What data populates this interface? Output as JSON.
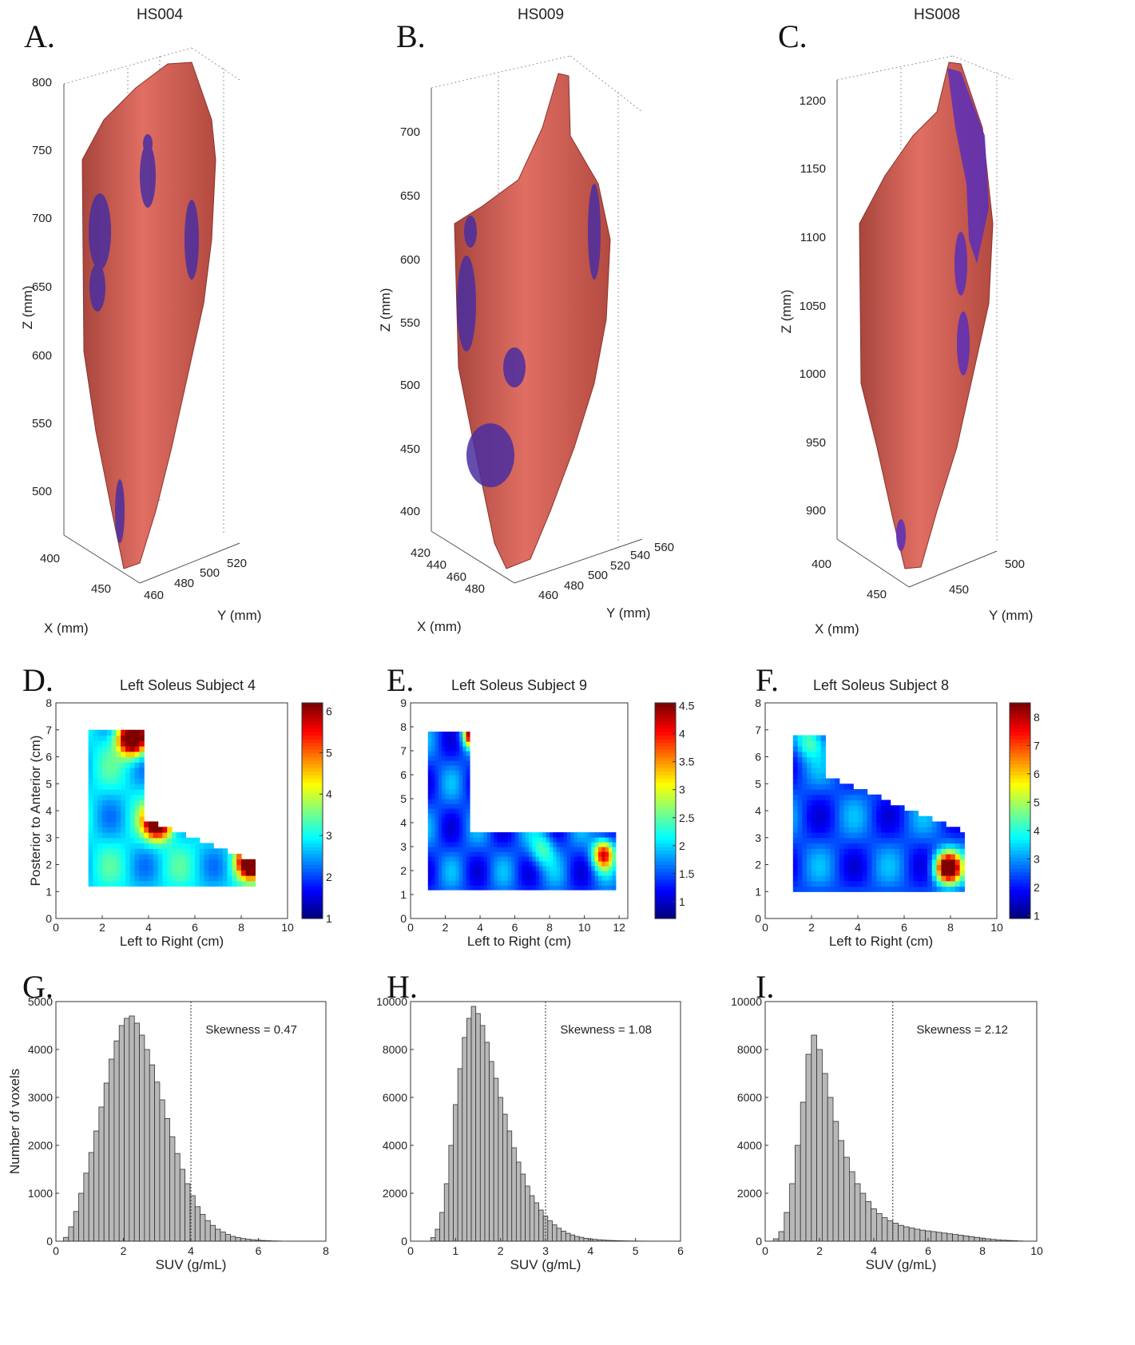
{
  "panels3d": [
    {
      "letter": "A.",
      "title": "HS004",
      "zlabel": "Z (mm)",
      "xlabel": "X (mm)",
      "ylabel": "Y (mm)",
      "zticks": [
        "800",
        "750",
        "700",
        "650",
        "600",
        "550",
        "500"
      ],
      "xticks": [
        "400",
        "450"
      ],
      "yticks": [
        "460",
        "480",
        "500",
        "520"
      ]
    },
    {
      "letter": "B.",
      "title": "HS009",
      "zlabel": "Z (mm)",
      "xlabel": "X (mm)",
      "ylabel": "Y (mm)",
      "zticks": [
        "700",
        "650",
        "600",
        "550",
        "500",
        "450",
        "400"
      ],
      "xticks": [
        "420",
        "440",
        "460",
        "480"
      ],
      "yticks": [
        "460",
        "480",
        "500",
        "520",
        "540",
        "560"
      ]
    },
    {
      "letter": "C.",
      "title": "HS008",
      "zlabel": "Z (mm)",
      "xlabel": "X (mm)",
      "ylabel": "Y (mm)",
      "zticks": [
        "1200",
        "1150",
        "1100",
        "1050",
        "1000",
        "950",
        "900"
      ],
      "xticks": [
        "400",
        "450"
      ],
      "yticks": [
        "450",
        "500"
      ]
    }
  ],
  "chart_data": [
    {
      "type": "heatmap",
      "letter": "D.",
      "title": "Left Soleus Subject 4",
      "xlabel": "Left to Right (cm)",
      "ylabel": "Posterior to Anterior (cm)",
      "xlim": [
        0,
        10
      ],
      "ylim": [
        0,
        8
      ],
      "xticks": [
        0,
        2,
        4,
        6,
        8,
        10
      ],
      "yticks": [
        0,
        1,
        2,
        3,
        4,
        5,
        6,
        7,
        8
      ],
      "colorbar": {
        "min": 1,
        "max": 6.2,
        "ticks": [
          "1",
          "2",
          "3",
          "4",
          "5",
          "6"
        ]
      }
    },
    {
      "type": "heatmap",
      "letter": "E.",
      "title": "Left Soleus Subject 9",
      "xlabel": "Left to Right (cm)",
      "ylabel": "",
      "xlim": [
        0,
        12.5
      ],
      "ylim": [
        0,
        9
      ],
      "xticks": [
        0,
        2,
        4,
        6,
        8,
        10,
        12
      ],
      "yticks": [
        0,
        1,
        2,
        3,
        4,
        5,
        6,
        7,
        8,
        9
      ],
      "colorbar": {
        "min": 0.7,
        "max": 4.55,
        "ticks": [
          "1",
          "1.5",
          "2",
          "2.5",
          "3",
          "3.5",
          "4",
          "4.5"
        ]
      }
    },
    {
      "type": "heatmap",
      "letter": "F.",
      "title": "Left Soleus Subject 8",
      "xlabel": "Left to Right (cm)",
      "ylabel": "",
      "xlim": [
        0,
        10
      ],
      "ylim": [
        0,
        8
      ],
      "xticks": [
        0,
        2,
        4,
        6,
        8,
        10
      ],
      "yticks": [
        0,
        1,
        2,
        3,
        4,
        5,
        6,
        7,
        8
      ],
      "colorbar": {
        "min": 0.9,
        "max": 8.5,
        "ticks": [
          "1",
          "2",
          "3",
          "4",
          "5",
          "6",
          "7",
          "8"
        ]
      }
    },
    {
      "type": "bar",
      "letter": "G.",
      "xlabel": "SUV (g/mL)",
      "ylabel": "Number of voxels",
      "annotation": "Skewness = 0.47",
      "xlim": [
        0,
        8
      ],
      "ylim": [
        0,
        5000
      ],
      "xticks": [
        0,
        2,
        4,
        6,
        8
      ],
      "yticks": [
        0,
        1000,
        2000,
        3000,
        4000,
        5000
      ],
      "binwidth": 0.15,
      "threshold": 4.0,
      "x": [
        0.3,
        0.45,
        0.6,
        0.75,
        0.9,
        1.05,
        1.2,
        1.35,
        1.5,
        1.65,
        1.8,
        1.95,
        2.1,
        2.25,
        2.4,
        2.55,
        2.7,
        2.85,
        3.0,
        3.15,
        3.3,
        3.45,
        3.6,
        3.75,
        3.9,
        4.05,
        4.2,
        4.35,
        4.5,
        4.65,
        4.8,
        4.95,
        5.1,
        5.25,
        5.4,
        5.55,
        5.7,
        5.85,
        6.0,
        6.15,
        6.3,
        6.45,
        6.6
      ],
      "values": [
        80,
        300,
        620,
        1000,
        1420,
        1850,
        2300,
        2800,
        3300,
        3800,
        4180,
        4500,
        4650,
        4700,
        4550,
        4300,
        4000,
        3680,
        3320,
        2950,
        2560,
        2180,
        1830,
        1500,
        1200,
        950,
        720,
        560,
        430,
        330,
        250,
        190,
        140,
        100,
        75,
        55,
        40,
        30,
        22,
        15,
        10,
        6,
        4
      ]
    },
    {
      "type": "bar",
      "letter": "H.",
      "xlabel": "SUV (g/mL)",
      "ylabel": "",
      "annotation": "Skewness = 1.08",
      "xlim": [
        0,
        6
      ],
      "ylim": [
        0,
        10000
      ],
      "xticks": [
        0,
        1,
        2,
        3,
        4,
        5,
        6
      ],
      "yticks": [
        0,
        2000,
        4000,
        6000,
        8000,
        10000
      ],
      "binwidth": 0.1,
      "threshold": 3.0,
      "x": [
        0.5,
        0.6,
        0.7,
        0.8,
        0.9,
        1.0,
        1.1,
        1.2,
        1.3,
        1.4,
        1.5,
        1.6,
        1.7,
        1.8,
        1.9,
        2.0,
        2.1,
        2.2,
        2.3,
        2.4,
        2.5,
        2.6,
        2.7,
        2.8,
        2.9,
        3.0,
        3.1,
        3.2,
        3.3,
        3.4,
        3.5,
        3.6,
        3.7,
        3.8,
        3.9,
        4.0,
        4.1,
        4.2,
        4.3,
        4.4,
        4.5,
        4.6,
        4.7,
        4.8,
        4.9,
        5.0,
        5.1,
        5.2,
        5.3
      ],
      "values": [
        150,
        500,
        1200,
        2400,
        4000,
        5700,
        7200,
        8500,
        9300,
        9800,
        9500,
        9000,
        8300,
        7500,
        6800,
        6000,
        5300,
        4600,
        3900,
        3300,
        2800,
        2300,
        1900,
        1600,
        1300,
        1050,
        850,
        680,
        540,
        420,
        330,
        260,
        200,
        160,
        120,
        95,
        75,
        60,
        45,
        35,
        28,
        22,
        17,
        13,
        10,
        8,
        6,
        5,
        4
      ]
    },
    {
      "type": "bar",
      "letter": "I.",
      "xlabel": "SUV (g/mL)",
      "ylabel": "",
      "annotation": "Skewness = 2.12",
      "xlim": [
        0,
        10
      ],
      "ylim": [
        0,
        10000
      ],
      "xticks": [
        0,
        2,
        4,
        6,
        8,
        10
      ],
      "yticks": [
        0,
        2000,
        4000,
        6000,
        8000,
        10000
      ],
      "binwidth": 0.2,
      "threshold": 4.7,
      "x": [
        0.4,
        0.6,
        0.8,
        1.0,
        1.2,
        1.4,
        1.6,
        1.8,
        2.0,
        2.2,
        2.4,
        2.6,
        2.8,
        3.0,
        3.2,
        3.4,
        3.6,
        3.8,
        4.0,
        4.2,
        4.4,
        4.6,
        4.8,
        5.0,
        5.2,
        5.4,
        5.6,
        5.8,
        6.0,
        6.2,
        6.4,
        6.6,
        6.8,
        7.0,
        7.2,
        7.4,
        7.6,
        7.8,
        8.0,
        8.2,
        8.4,
        8.6,
        8.8,
        9.0,
        9.2,
        9.4
      ],
      "values": [
        100,
        400,
        1200,
        2400,
        4000,
        5800,
        7800,
        8600,
        8000,
        7000,
        6000,
        5000,
        4200,
        3500,
        2900,
        2400,
        2000,
        1650,
        1350,
        1150,
        980,
        850,
        750,
        660,
        600,
        550,
        500,
        460,
        430,
        400,
        370,
        340,
        310,
        280,
        250,
        220,
        190,
        160,
        130,
        100,
        75,
        55,
        40,
        30,
        20,
        10
      ]
    }
  ]
}
